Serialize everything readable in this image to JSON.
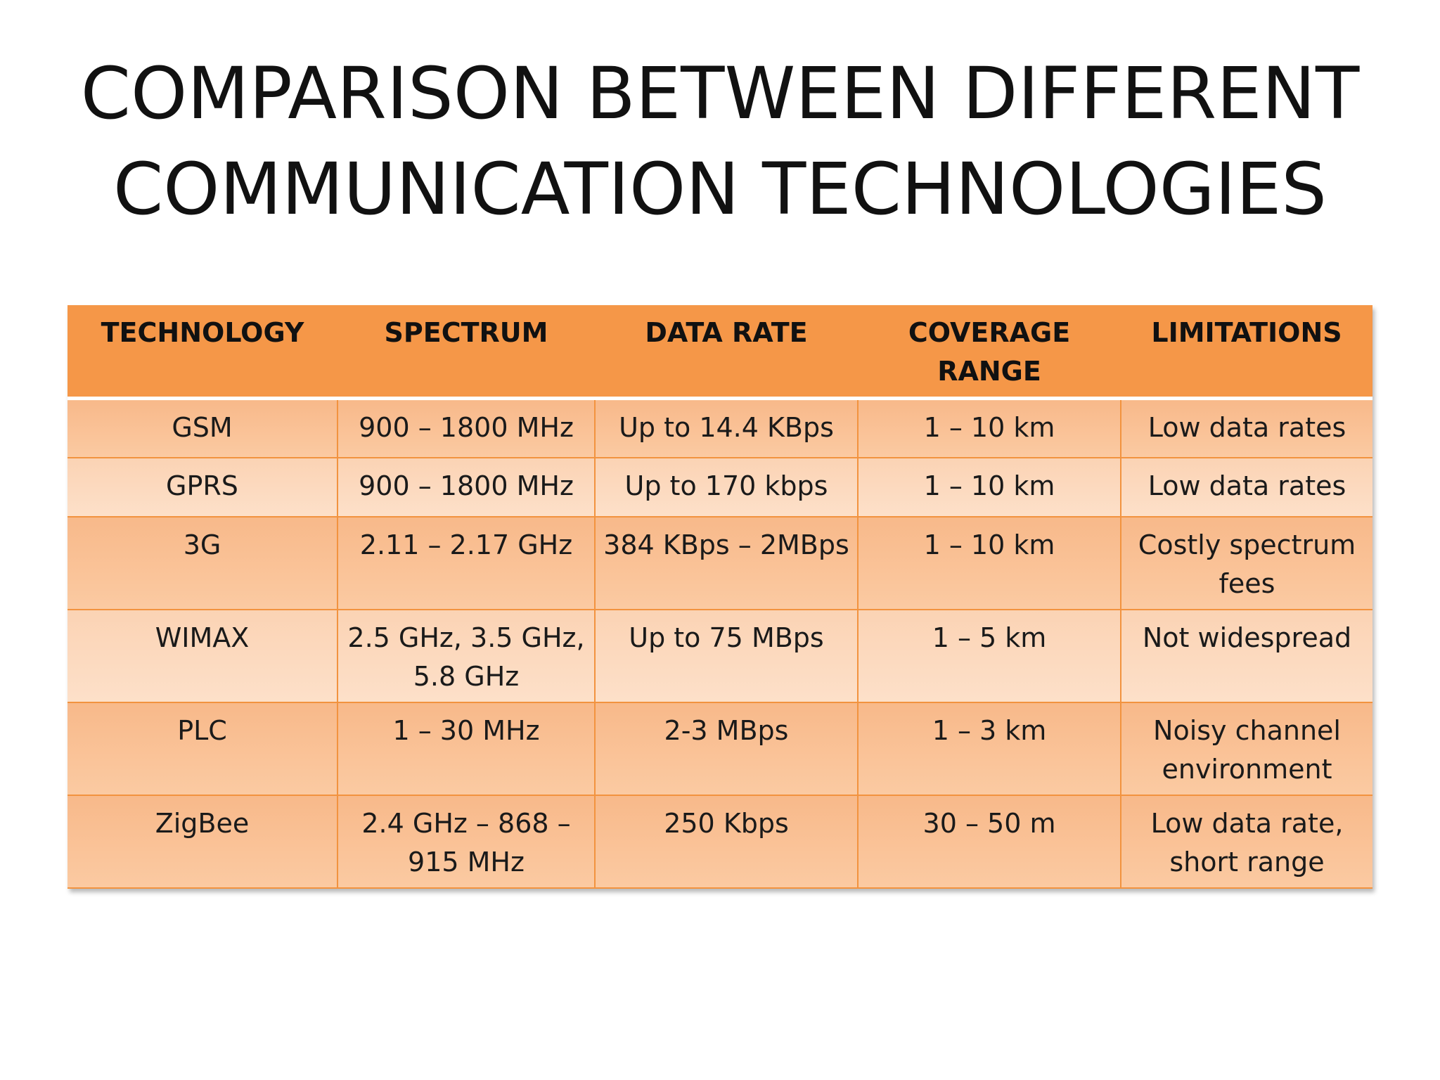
{
  "slide": {
    "title_line1": "COMPARISON BETWEEN DIFFERENT",
    "title_line2": "COMMUNICATION TECHNOLOGIES"
  },
  "table": {
    "headers": [
      "TECHNOLOGY",
      "SPECTRUM",
      "DATA RATE",
      "COVERAGE RANGE",
      "LIMITATIONS"
    ],
    "rows": [
      [
        "GSM",
        "900 – 1800 MHz",
        "Up to 14.4 KBps",
        "1 – 10 km",
        "Low data rates"
      ],
      [
        "GPRS",
        "900 – 1800 MHz",
        "Up to 170 kbps",
        "1 – 10 km",
        "Low data rates"
      ],
      [
        "3G",
        "2.11 – 2.17 GHz",
        "384 KBps – 2MBps",
        "1 – 10 km",
        "Costly spectrum fees"
      ],
      [
        "WIMAX",
        "2.5 GHz, 3.5 GHz, 5.8 GHz",
        "Up to 75 MBps",
        "1 – 5 km",
        "Not widespread"
      ],
      [
        "PLC",
        "1 – 30 MHz",
        "2-3 MBps",
        "1 – 3 km",
        "Noisy channel environment"
      ],
      [
        "ZigBee",
        "2.4 GHz – 868 – 915 MHz",
        "250 Kbps",
        "30 – 50 m",
        "Low data rate, short range"
      ]
    ]
  },
  "colors": {
    "header_bg": "#f59748",
    "row_dark": "#f9bf92",
    "row_light": "#fcd8bc",
    "grid_line": "#f2933f"
  }
}
